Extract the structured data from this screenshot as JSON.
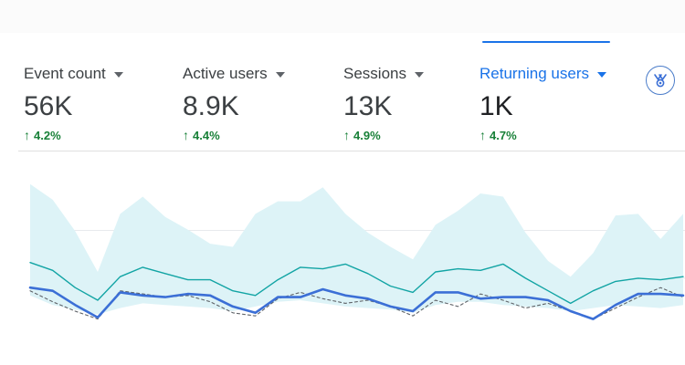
{
  "metrics": [
    {
      "label": "Event count",
      "value": "56K",
      "change": "4.2%"
    },
    {
      "label": "Active users",
      "value": "8.9K",
      "change": "4.4%"
    },
    {
      "label": "Sessions",
      "value": "13K",
      "change": "4.9%"
    },
    {
      "label": "Returning users",
      "value": "1K",
      "change": "4.7%",
      "selected": true
    }
  ],
  "icons": {
    "change_arrow": "up-arrow-icon",
    "insights": "insights-icon",
    "metric_dropdown": "dropdown-caret-icon"
  },
  "colors": {
    "accent": "#1a73e8",
    "positive": "#188038",
    "band": "#ddf3f7",
    "secondary_line": "#12a4a4",
    "primary_line": "#3b6fd6",
    "comparison_line": "#5f6368"
  },
  "chart_data": {
    "type": "line",
    "x": [
      1,
      2,
      3,
      4,
      5,
      6,
      7,
      8,
      9,
      10,
      11,
      12,
      13,
      14,
      15,
      16,
      17,
      18,
      19,
      20,
      21,
      22,
      23,
      24,
      25,
      26,
      27,
      28,
      29,
      30
    ],
    "ylim": [
      0,
      100
    ],
    "grid": true,
    "bands": [
      {
        "upper": [
          99,
          89,
          69,
          43,
          80,
          91,
          78,
          70,
          61,
          59,
          80,
          88,
          88,
          97,
          80,
          68,
          59,
          51,
          73,
          82,
          93,
          91,
          68,
          50,
          40,
          55,
          79,
          80,
          64,
          80
        ],
        "lower": [
          28,
          22,
          19,
          16,
          20,
          23,
          22,
          21,
          20,
          18,
          21,
          24,
          25,
          23,
          21,
          20,
          19,
          17,
          22,
          24,
          24,
          22,
          21,
          20,
          18,
          20,
          22,
          21,
          20,
          22
        ]
      }
    ],
    "series": [
      {
        "values": [
          49,
          44,
          33,
          25,
          40,
          46,
          42,
          38,
          38,
          31,
          28,
          38,
          46,
          45,
          48,
          42,
          34,
          30,
          43,
          45,
          44,
          48,
          39,
          31,
          23,
          31,
          37,
          39,
          38,
          40
        ]
      },
      {
        "values": [
          33,
          31,
          22,
          14,
          30,
          28,
          27,
          29,
          28,
          21,
          17,
          27,
          27,
          32,
          28,
          26,
          21,
          18,
          30,
          30,
          26,
          27,
          27,
          25,
          18,
          13,
          22,
          29,
          29,
          28
        ]
      },
      {
        "values": [
          31,
          24,
          18,
          13,
          31,
          29,
          27,
          28,
          24,
          17,
          15,
          26,
          30,
          26,
          23,
          25,
          21,
          15,
          25,
          21,
          29,
          25,
          20,
          23,
          18,
          13,
          20,
          27,
          33,
          27
        ]
      }
    ]
  }
}
